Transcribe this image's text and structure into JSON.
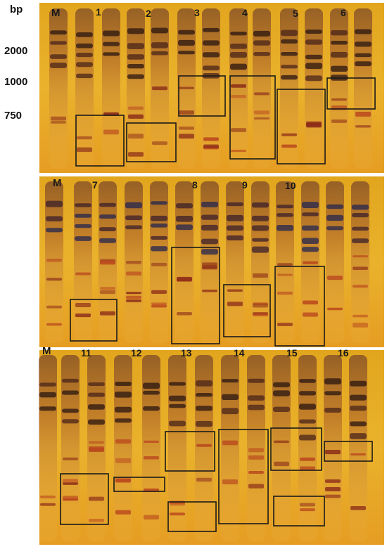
{
  "figure": {
    "bp_label": "bp",
    "size_markers": [
      "2000",
      "1000",
      "750"
    ],
    "panels": [
      {
        "marker_label": "M",
        "lane_labels": [
          "1",
          "2",
          "3",
          "4",
          "5",
          "6"
        ]
      },
      {
        "marker_label": "M",
        "lane_labels": [
          "7",
          "8",
          "9",
          "10"
        ]
      },
      {
        "marker_label": "M",
        "lane_labels": [
          "11",
          "12",
          "13",
          "14",
          "15",
          "16"
        ]
      }
    ]
  }
}
